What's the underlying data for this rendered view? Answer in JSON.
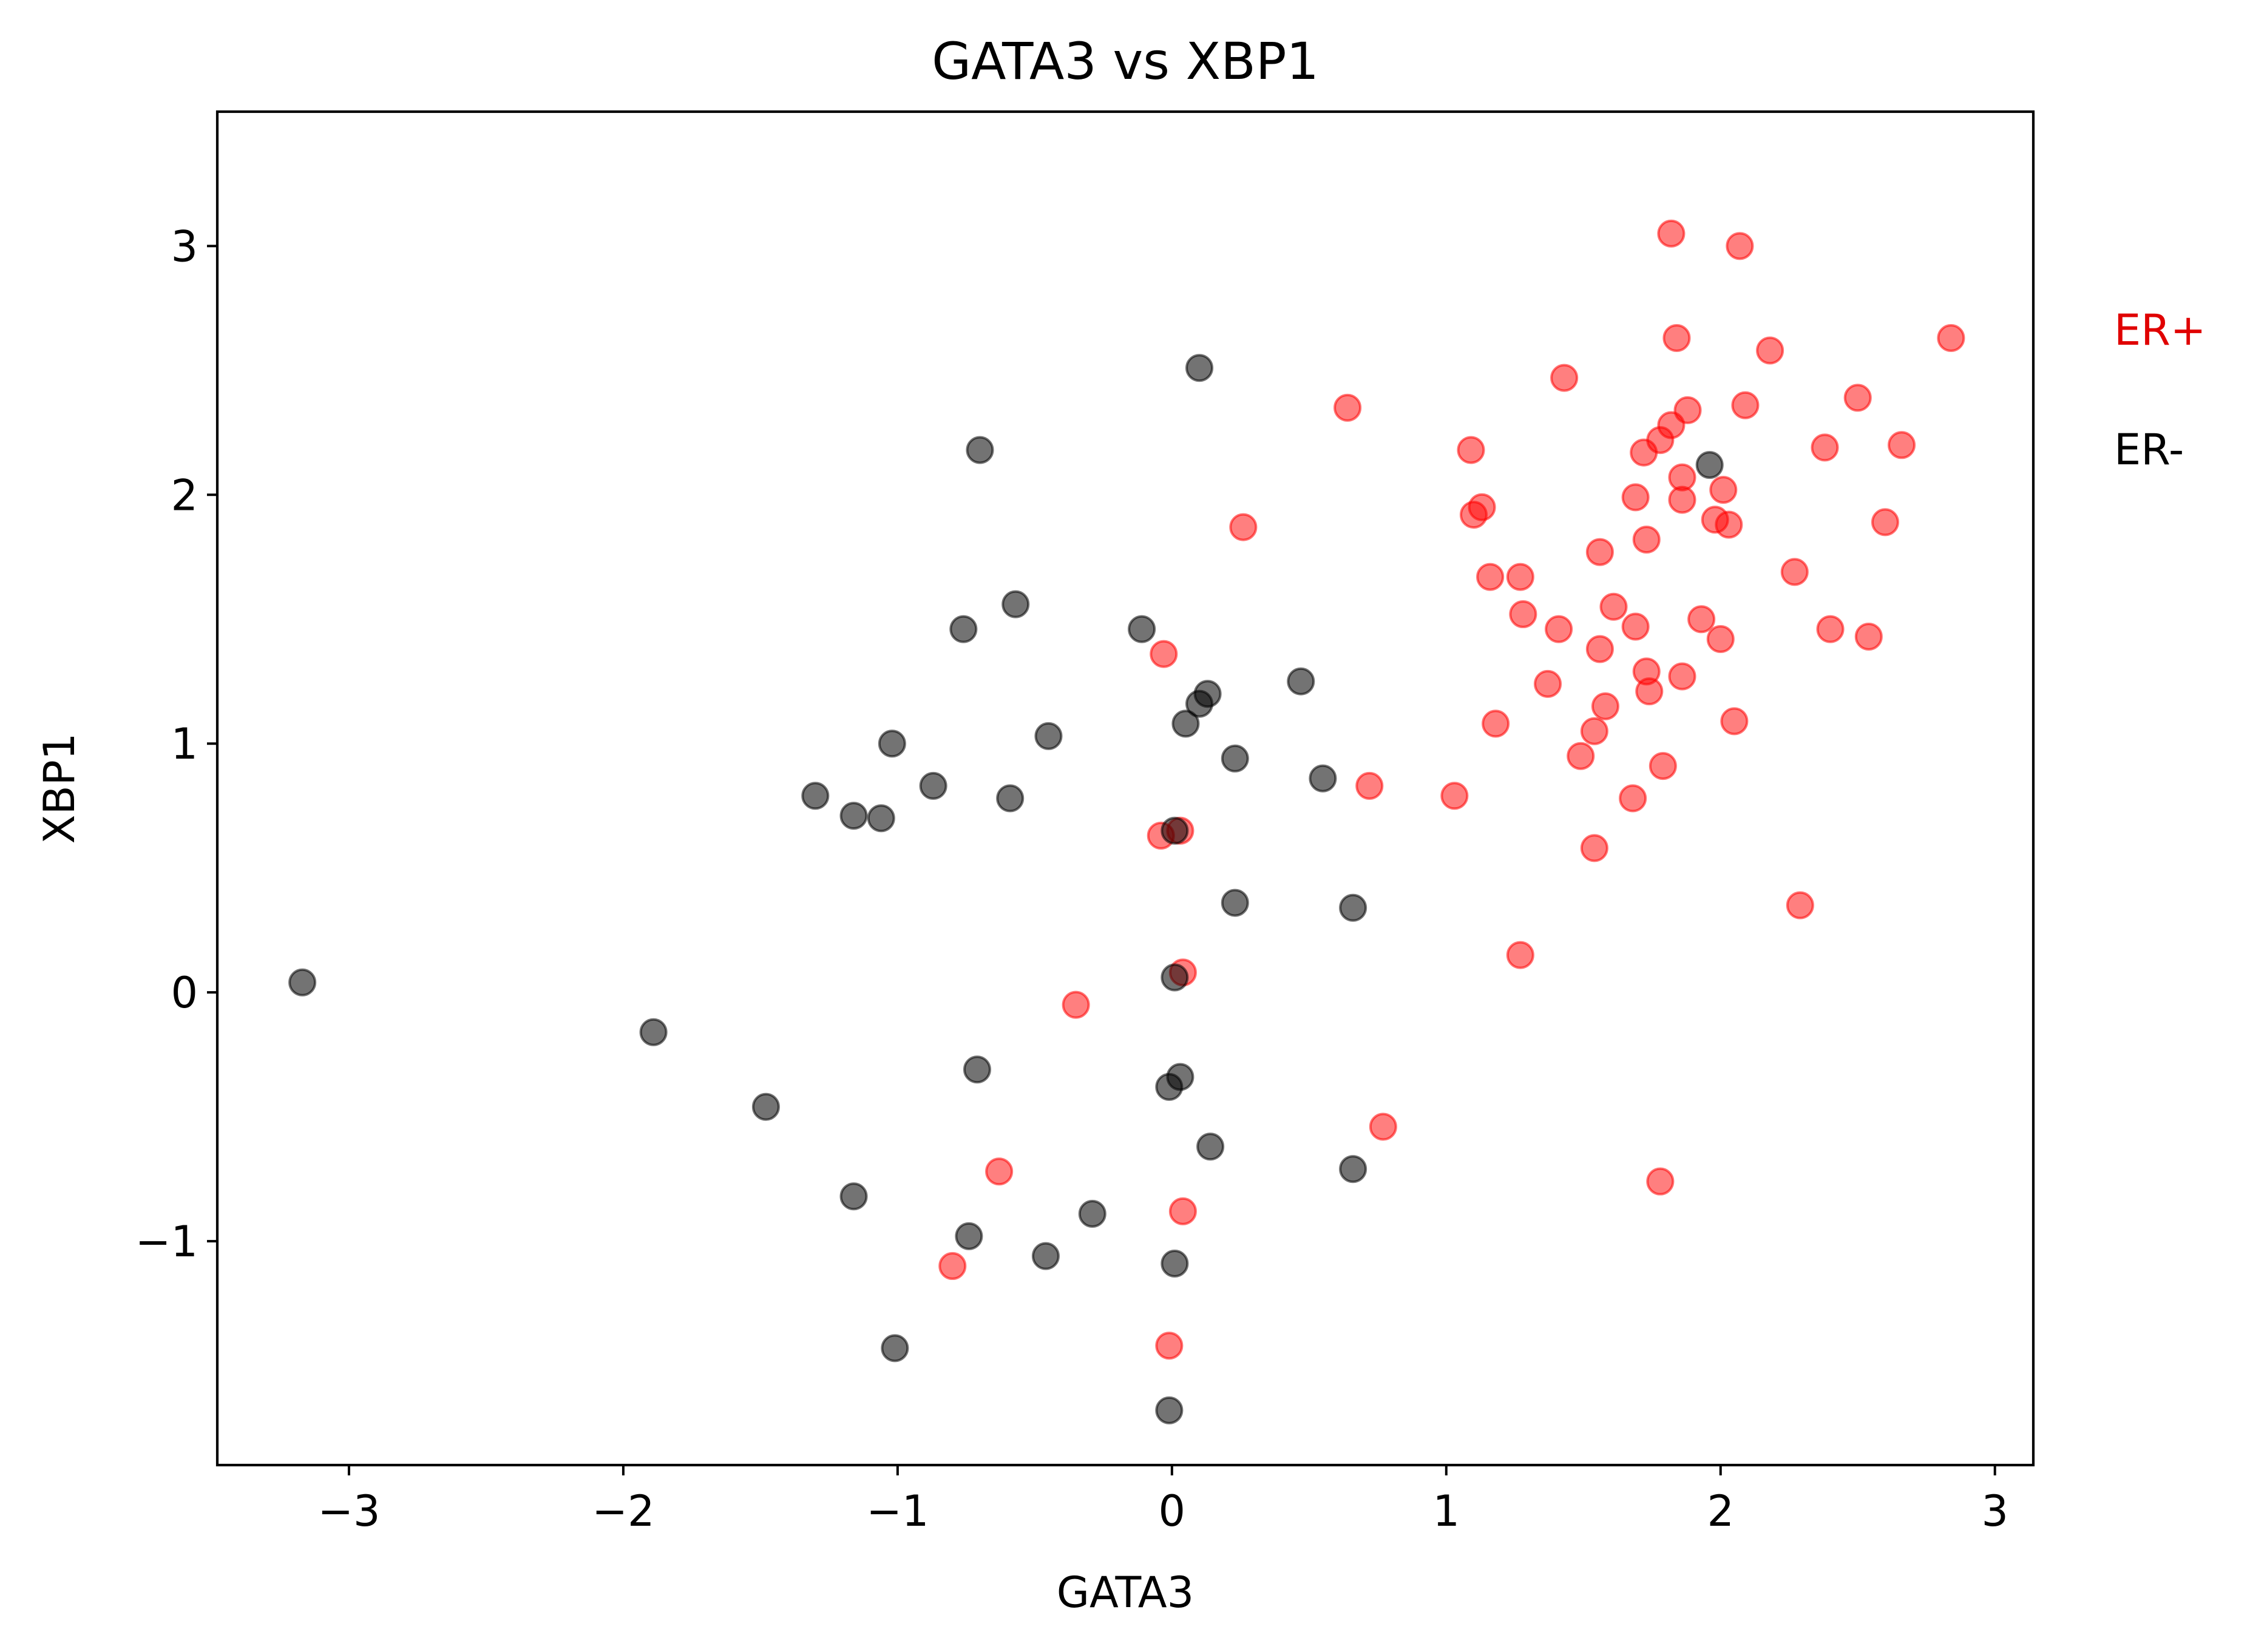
{
  "chart_data": {
    "type": "scatter",
    "title": "GATA3 vs XBP1",
    "xlabel": "GATA3",
    "ylabel": "XBP1",
    "xlim": [
      -3.48,
      3.14
    ],
    "ylim": [
      -1.9,
      3.54
    ],
    "xticks": [
      -3,
      -2,
      -1,
      0,
      1,
      2,
      3
    ],
    "xtick_labels": [
      "−3",
      "−2",
      "−1",
      "0",
      "1",
      "2",
      "3"
    ],
    "yticks": [
      -1,
      0,
      1,
      2,
      3
    ],
    "ytick_labels": [
      "−1",
      "0",
      "1",
      "2",
      "3"
    ],
    "grid": false,
    "legend_placement": "right, outside plot area (text labels)",
    "series": [
      {
        "name": "ER+",
        "color": "#ff0000",
        "points": [
          [
            1.82,
            3.05
          ],
          [
            2.07,
            3.0
          ],
          [
            1.84,
            2.63
          ],
          [
            2.18,
            2.58
          ],
          [
            2.84,
            2.63
          ],
          [
            1.43,
            2.47
          ],
          [
            0.64,
            2.35
          ],
          [
            2.09,
            2.36
          ],
          [
            1.88,
            2.34
          ],
          [
            2.5,
            2.39
          ],
          [
            1.82,
            2.28
          ],
          [
            1.78,
            2.22
          ],
          [
            1.72,
            2.17
          ],
          [
            1.09,
            2.18
          ],
          [
            2.38,
            2.19
          ],
          [
            2.66,
            2.2
          ],
          [
            1.86,
            2.07
          ],
          [
            2.01,
            2.02
          ],
          [
            1.69,
            1.99
          ],
          [
            1.86,
            1.98
          ],
          [
            1.13,
            1.95
          ],
          [
            1.1,
            1.92
          ],
          [
            1.98,
            1.9
          ],
          [
            2.03,
            1.88
          ],
          [
            2.6,
            1.89
          ],
          [
            0.26,
            1.87
          ],
          [
            1.73,
            1.82
          ],
          [
            1.56,
            1.77
          ],
          [
            2.27,
            1.69
          ],
          [
            1.16,
            1.67
          ],
          [
            1.27,
            1.67
          ],
          [
            1.61,
            1.55
          ],
          [
            1.28,
            1.52
          ],
          [
            1.93,
            1.5
          ],
          [
            1.41,
            1.46
          ],
          [
            1.69,
            1.47
          ],
          [
            2.4,
            1.46
          ],
          [
            2.0,
            1.42
          ],
          [
            2.54,
            1.43
          ],
          [
            1.56,
            1.38
          ],
          [
            -0.03,
            1.36
          ],
          [
            1.73,
            1.29
          ],
          [
            1.86,
            1.27
          ],
          [
            1.37,
            1.24
          ],
          [
            1.74,
            1.21
          ],
          [
            1.58,
            1.15
          ],
          [
            1.18,
            1.08
          ],
          [
            2.05,
            1.09
          ],
          [
            1.54,
            1.05
          ],
          [
            1.49,
            0.95
          ],
          [
            1.79,
            0.91
          ],
          [
            0.72,
            0.83
          ],
          [
            1.03,
            0.79
          ],
          [
            1.68,
            0.78
          ],
          [
            -0.04,
            0.63
          ],
          [
            0.03,
            0.65
          ],
          [
            1.54,
            0.58
          ],
          [
            2.29,
            0.35
          ],
          [
            1.27,
            0.15
          ],
          [
            0.04,
            0.08
          ],
          [
            -0.35,
            -0.05
          ],
          [
            0.77,
            -0.54
          ],
          [
            -0.63,
            -0.72
          ],
          [
            1.78,
            -0.76
          ],
          [
            0.04,
            -0.88
          ],
          [
            -0.8,
            -1.1
          ],
          [
            -0.01,
            -1.42
          ]
        ]
      },
      {
        "name": "ER-",
        "color": "#000000",
        "points": [
          [
            0.1,
            2.51
          ],
          [
            -0.7,
            2.18
          ],
          [
            1.96,
            2.12
          ],
          [
            -0.57,
            1.56
          ],
          [
            -0.76,
            1.46
          ],
          [
            -0.11,
            1.46
          ],
          [
            0.47,
            1.25
          ],
          [
            0.13,
            1.2
          ],
          [
            0.1,
            1.16
          ],
          [
            0.05,
            1.08
          ],
          [
            -0.45,
            1.03
          ],
          [
            -1.02,
            1.0
          ],
          [
            0.23,
            0.94
          ],
          [
            0.55,
            0.86
          ],
          [
            -0.87,
            0.83
          ],
          [
            -1.3,
            0.79
          ],
          [
            -0.59,
            0.78
          ],
          [
            -1.16,
            0.71
          ],
          [
            -1.06,
            0.7
          ],
          [
            0.01,
            0.65
          ],
          [
            0.23,
            0.36
          ],
          [
            0.66,
            0.34
          ],
          [
            -3.17,
            0.04
          ],
          [
            0.01,
            0.06
          ],
          [
            -1.89,
            -0.16
          ],
          [
            -0.71,
            -0.31
          ],
          [
            0.03,
            -0.34
          ],
          [
            -0.01,
            -0.38
          ],
          [
            -1.48,
            -0.46
          ],
          [
            0.14,
            -0.62
          ],
          [
            0.66,
            -0.71
          ],
          [
            -1.16,
            -0.82
          ],
          [
            -0.29,
            -0.89
          ],
          [
            -0.74,
            -0.98
          ],
          [
            -0.46,
            -1.06
          ],
          [
            0.01,
            -1.09
          ],
          [
            -1.01,
            -1.43
          ],
          [
            -0.01,
            -1.68
          ]
        ]
      }
    ]
  }
}
